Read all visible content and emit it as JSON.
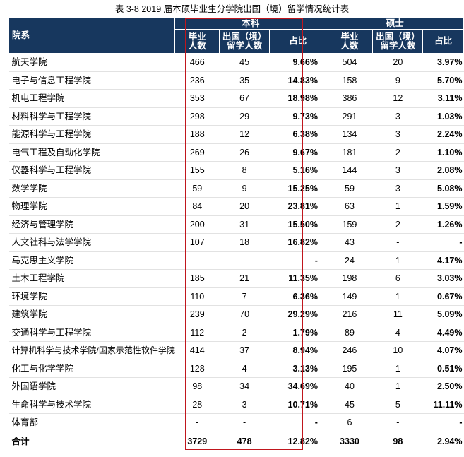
{
  "title": "表 3-8    2019 届本硕毕业生分学院出国（境）留学情况统计表",
  "header": {
    "dept": "院系",
    "undergrad": "本科",
    "master": "硕士",
    "grad_count": [
      "毕业",
      "人数"
    ],
    "abroad_count": [
      "出国（境）",
      "留学人数"
    ],
    "ratio": "占比"
  },
  "rows": [
    {
      "name": "航天学院",
      "u_grad": "466",
      "u_abroad": "45",
      "u_ratio": "9.66%",
      "m_grad": "504",
      "m_abroad": "20",
      "m_ratio": "3.97%"
    },
    {
      "name": "电子与信息工程学院",
      "u_grad": "236",
      "u_abroad": "35",
      "u_ratio": "14.83%",
      "m_grad": "158",
      "m_abroad": "9",
      "m_ratio": "5.70%"
    },
    {
      "name": "机电工程学院",
      "u_grad": "353",
      "u_abroad": "67",
      "u_ratio": "18.98%",
      "m_grad": "386",
      "m_abroad": "12",
      "m_ratio": "3.11%"
    },
    {
      "name": "材料科学与工程学院",
      "u_grad": "298",
      "u_abroad": "29",
      "u_ratio": "9.73%",
      "m_grad": "291",
      "m_abroad": "3",
      "m_ratio": "1.03%"
    },
    {
      "name": "能源科学与工程学院",
      "u_grad": "188",
      "u_abroad": "12",
      "u_ratio": "6.38%",
      "m_grad": "134",
      "m_abroad": "3",
      "m_ratio": "2.24%"
    },
    {
      "name": "电气工程及自动化学院",
      "u_grad": "269",
      "u_abroad": "26",
      "u_ratio": "9.67%",
      "m_grad": "181",
      "m_abroad": "2",
      "m_ratio": "1.10%"
    },
    {
      "name": "仪器科学与工程学院",
      "u_grad": "155",
      "u_abroad": "8",
      "u_ratio": "5.16%",
      "m_grad": "144",
      "m_abroad": "3",
      "m_ratio": "2.08%"
    },
    {
      "name": "数学学院",
      "u_grad": "59",
      "u_abroad": "9",
      "u_ratio": "15.25%",
      "m_grad": "59",
      "m_abroad": "3",
      "m_ratio": "5.08%"
    },
    {
      "name": "物理学院",
      "u_grad": "84",
      "u_abroad": "20",
      "u_ratio": "23.81%",
      "m_grad": "63",
      "m_abroad": "1",
      "m_ratio": "1.59%"
    },
    {
      "name": "经济与管理学院",
      "u_grad": "200",
      "u_abroad": "31",
      "u_ratio": "15.50%",
      "m_grad": "159",
      "m_abroad": "2",
      "m_ratio": "1.26%"
    },
    {
      "name": "人文社科与法学学院",
      "u_grad": "107",
      "u_abroad": "18",
      "u_ratio": "16.82%",
      "m_grad": "43",
      "m_abroad": "-",
      "m_ratio": "-"
    },
    {
      "name": "马克思主义学院",
      "u_grad": "-",
      "u_abroad": "-",
      "u_ratio": "-",
      "m_grad": "24",
      "m_abroad": "1",
      "m_ratio": "4.17%"
    },
    {
      "name": "土木工程学院",
      "u_grad": "185",
      "u_abroad": "21",
      "u_ratio": "11.35%",
      "m_grad": "198",
      "m_abroad": "6",
      "m_ratio": "3.03%"
    },
    {
      "name": "环境学院",
      "u_grad": "110",
      "u_abroad": "7",
      "u_ratio": "6.36%",
      "m_grad": "149",
      "m_abroad": "1",
      "m_ratio": "0.67%"
    },
    {
      "name": "建筑学院",
      "u_grad": "239",
      "u_abroad": "70",
      "u_ratio": "29.29%",
      "m_grad": "216",
      "m_abroad": "11",
      "m_ratio": "5.09%"
    },
    {
      "name": "交通科学与工程学院",
      "u_grad": "112",
      "u_abroad": "2",
      "u_ratio": "1.79%",
      "m_grad": "89",
      "m_abroad": "4",
      "m_ratio": "4.49%"
    },
    {
      "name": "计算机科学与技术学院/国家示范性软件学院",
      "u_grad": "414",
      "u_abroad": "37",
      "u_ratio": "8.94%",
      "m_grad": "246",
      "m_abroad": "10",
      "m_ratio": "4.07%"
    },
    {
      "name": "化工与化学学院",
      "u_grad": "128",
      "u_abroad": "4",
      "u_ratio": "3.13%",
      "m_grad": "195",
      "m_abroad": "1",
      "m_ratio": "0.51%"
    },
    {
      "name": "外国语学院",
      "u_grad": "98",
      "u_abroad": "34",
      "u_ratio": "34.69%",
      "m_grad": "40",
      "m_abroad": "1",
      "m_ratio": "2.50%"
    },
    {
      "name": "生命科学与技术学院",
      "u_grad": "28",
      "u_abroad": "3",
      "u_ratio": "10.71%",
      "m_grad": "45",
      "m_abroad": "5",
      "m_ratio": "11.11%"
    },
    {
      "name": "体育部",
      "u_grad": "-",
      "u_abroad": "-",
      "u_ratio": "-",
      "m_grad": "6",
      "m_abroad": "-",
      "m_ratio": "-"
    }
  ],
  "total": {
    "name": "合计",
    "u_grad": "3729",
    "u_abroad": "478",
    "u_ratio": "12.82%",
    "m_grad": "3330",
    "m_abroad": "98",
    "m_ratio": "2.94%"
  },
  "colors": {
    "header_bg": "#17375e",
    "highlight_border": "#c0161d"
  }
}
